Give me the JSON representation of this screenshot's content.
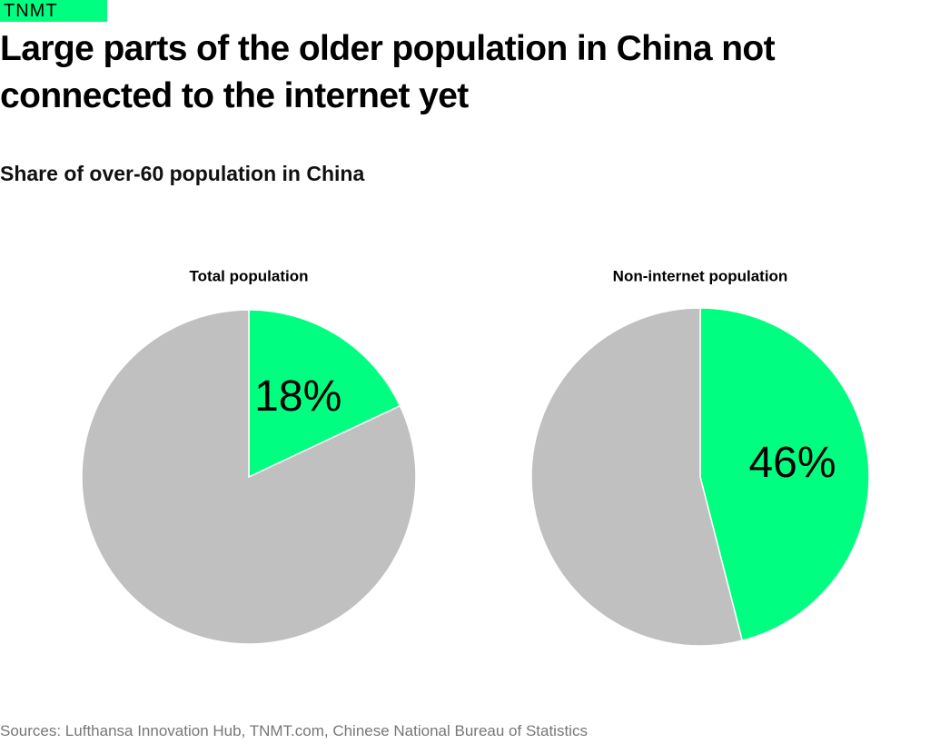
{
  "header": {
    "brand": "TNMT",
    "title": "Large parts of the older population in China not connected to the internet yet",
    "subtitle": "Share of over-60 population in China"
  },
  "chart_data": [
    {
      "type": "pie",
      "title": "Total population",
      "categories": [
        null,
        null
      ],
      "values": [
        18,
        82
      ],
      "value_labels": [
        "18%",
        null
      ],
      "colors": [
        "#00ff80",
        "#c0c0c0"
      ]
    },
    {
      "type": "pie",
      "title": "Non-internet population",
      "categories": [
        null,
        null
      ],
      "values": [
        46,
        54
      ],
      "value_labels": [
        "46%",
        null
      ],
      "colors": [
        "#00ff80",
        "#c0c0c0"
      ]
    }
  ],
  "source": "Sources: Lufthansa Innovation Hub, TNMT.com, Chinese National Bureau of Statistics"
}
